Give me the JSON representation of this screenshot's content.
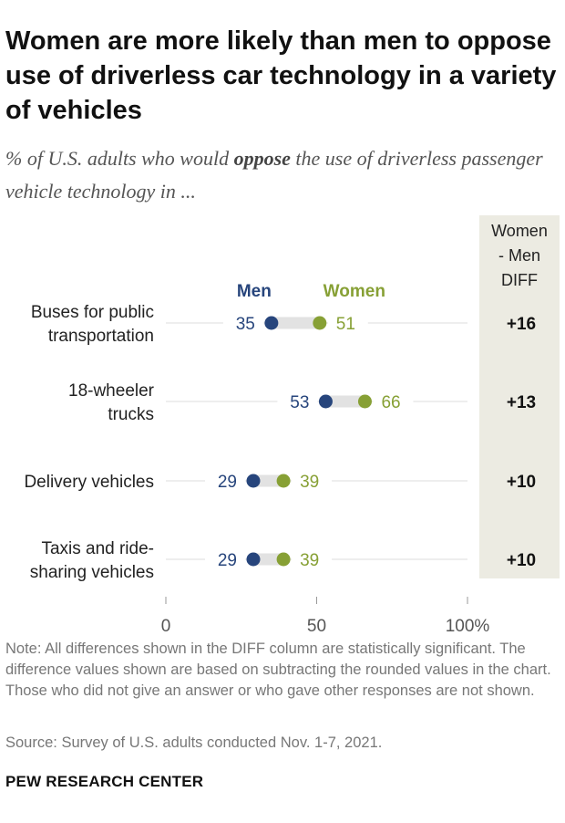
{
  "title": "Women are more likely than men to oppose use of driverless car technology in a variety of vehicles",
  "subtitle": {
    "before": "% of U.S. adults who would ",
    "emphasis": "oppose",
    "after": " the use of driverless passenger vehicle technology in ..."
  },
  "colors": {
    "men": "#27457c",
    "women": "#87a035",
    "diff_bg": "#ecebe2",
    "connector": "#e2e2e2",
    "gridline": "#dcdcdc"
  },
  "chart_data": {
    "type": "dot",
    "series": [
      {
        "name": "Men",
        "values": [
          35,
          53,
          29,
          29
        ]
      },
      {
        "name": "Women",
        "values": [
          51,
          66,
          39,
          39
        ]
      }
    ],
    "categories": [
      [
        "Buses for public",
        "transportation"
      ],
      [
        "18-wheeler",
        "trucks"
      ],
      [
        "Delivery vehicles"
      ],
      [
        "Taxis and ride-",
        "sharing vehicles"
      ]
    ],
    "diff_header": [
      "Women",
      "- Men",
      "DIFF"
    ],
    "diff": [
      "+16",
      "+13",
      "+10",
      "+10"
    ],
    "xlim": [
      0,
      100
    ],
    "ticks": [
      "0",
      "50",
      "100%"
    ],
    "tick_values": [
      0,
      50,
      100
    ]
  },
  "note": "Note: All differences shown in the DIFF column are statistically significant. The difference values shown are based on subtracting the rounded values in the chart. Those who did not give an answer or who gave other responses are not shown.",
  "source": "Source: Survey of U.S. adults conducted Nov. 1-7, 2021.",
  "brand": "PEW RESEARCH CENTER"
}
